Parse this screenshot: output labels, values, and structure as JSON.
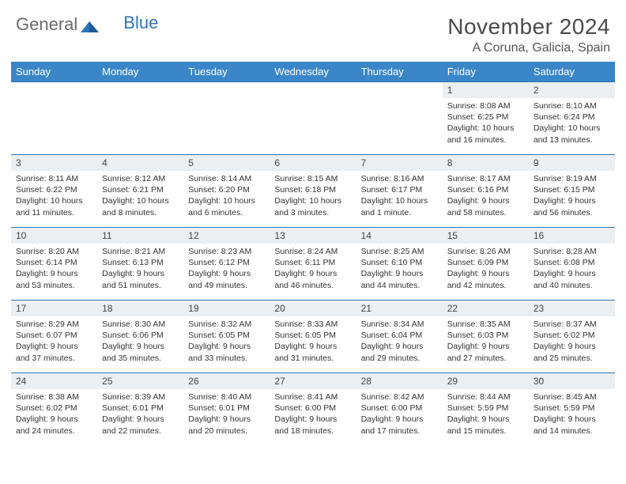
{
  "brand": {
    "part1": "General",
    "part2": "Blue"
  },
  "title": "November 2024",
  "location": "A Coruna, Galicia, Spain",
  "colors": {
    "header_bg": "#3b86c8",
    "daynum_bg": "#eceff1",
    "rule": "#2d74b8",
    "text": "#333333",
    "title": "#4a4a4a"
  },
  "day_names": [
    "Sunday",
    "Monday",
    "Tuesday",
    "Wednesday",
    "Thursday",
    "Friday",
    "Saturday"
  ],
  "weeks": [
    [
      {
        "n": "",
        "sr": "",
        "ss": "",
        "d1": "",
        "d2": ""
      },
      {
        "n": "",
        "sr": "",
        "ss": "",
        "d1": "",
        "d2": ""
      },
      {
        "n": "",
        "sr": "",
        "ss": "",
        "d1": "",
        "d2": ""
      },
      {
        "n": "",
        "sr": "",
        "ss": "",
        "d1": "",
        "d2": ""
      },
      {
        "n": "",
        "sr": "",
        "ss": "",
        "d1": "",
        "d2": ""
      },
      {
        "n": "1",
        "sr": "Sunrise: 8:08 AM",
        "ss": "Sunset: 6:25 PM",
        "d1": "Daylight: 10 hours",
        "d2": "and 16 minutes."
      },
      {
        "n": "2",
        "sr": "Sunrise: 8:10 AM",
        "ss": "Sunset: 6:24 PM",
        "d1": "Daylight: 10 hours",
        "d2": "and 13 minutes."
      }
    ],
    [
      {
        "n": "3",
        "sr": "Sunrise: 8:11 AM",
        "ss": "Sunset: 6:22 PM",
        "d1": "Daylight: 10 hours",
        "d2": "and 11 minutes."
      },
      {
        "n": "4",
        "sr": "Sunrise: 8:12 AM",
        "ss": "Sunset: 6:21 PM",
        "d1": "Daylight: 10 hours",
        "d2": "and 8 minutes."
      },
      {
        "n": "5",
        "sr": "Sunrise: 8:14 AM",
        "ss": "Sunset: 6:20 PM",
        "d1": "Daylight: 10 hours",
        "d2": "and 6 minutes."
      },
      {
        "n": "6",
        "sr": "Sunrise: 8:15 AM",
        "ss": "Sunset: 6:18 PM",
        "d1": "Daylight: 10 hours",
        "d2": "and 3 minutes."
      },
      {
        "n": "7",
        "sr": "Sunrise: 8:16 AM",
        "ss": "Sunset: 6:17 PM",
        "d1": "Daylight: 10 hours",
        "d2": "and 1 minute."
      },
      {
        "n": "8",
        "sr": "Sunrise: 8:17 AM",
        "ss": "Sunset: 6:16 PM",
        "d1": "Daylight: 9 hours",
        "d2": "and 58 minutes."
      },
      {
        "n": "9",
        "sr": "Sunrise: 8:19 AM",
        "ss": "Sunset: 6:15 PM",
        "d1": "Daylight: 9 hours",
        "d2": "and 56 minutes."
      }
    ],
    [
      {
        "n": "10",
        "sr": "Sunrise: 8:20 AM",
        "ss": "Sunset: 6:14 PM",
        "d1": "Daylight: 9 hours",
        "d2": "and 53 minutes."
      },
      {
        "n": "11",
        "sr": "Sunrise: 8:21 AM",
        "ss": "Sunset: 6:13 PM",
        "d1": "Daylight: 9 hours",
        "d2": "and 51 minutes."
      },
      {
        "n": "12",
        "sr": "Sunrise: 8:23 AM",
        "ss": "Sunset: 6:12 PM",
        "d1": "Daylight: 9 hours",
        "d2": "and 49 minutes."
      },
      {
        "n": "13",
        "sr": "Sunrise: 8:24 AM",
        "ss": "Sunset: 6:11 PM",
        "d1": "Daylight: 9 hours",
        "d2": "and 46 minutes."
      },
      {
        "n": "14",
        "sr": "Sunrise: 8:25 AM",
        "ss": "Sunset: 6:10 PM",
        "d1": "Daylight: 9 hours",
        "d2": "and 44 minutes."
      },
      {
        "n": "15",
        "sr": "Sunrise: 8:26 AM",
        "ss": "Sunset: 6:09 PM",
        "d1": "Daylight: 9 hours",
        "d2": "and 42 minutes."
      },
      {
        "n": "16",
        "sr": "Sunrise: 8:28 AM",
        "ss": "Sunset: 6:08 PM",
        "d1": "Daylight: 9 hours",
        "d2": "and 40 minutes."
      }
    ],
    [
      {
        "n": "17",
        "sr": "Sunrise: 8:29 AM",
        "ss": "Sunset: 6:07 PM",
        "d1": "Daylight: 9 hours",
        "d2": "and 37 minutes."
      },
      {
        "n": "18",
        "sr": "Sunrise: 8:30 AM",
        "ss": "Sunset: 6:06 PM",
        "d1": "Daylight: 9 hours",
        "d2": "and 35 minutes."
      },
      {
        "n": "19",
        "sr": "Sunrise: 8:32 AM",
        "ss": "Sunset: 6:05 PM",
        "d1": "Daylight: 9 hours",
        "d2": "and 33 minutes."
      },
      {
        "n": "20",
        "sr": "Sunrise: 8:33 AM",
        "ss": "Sunset: 6:05 PM",
        "d1": "Daylight: 9 hours",
        "d2": "and 31 minutes."
      },
      {
        "n": "21",
        "sr": "Sunrise: 8:34 AM",
        "ss": "Sunset: 6:04 PM",
        "d1": "Daylight: 9 hours",
        "d2": "and 29 minutes."
      },
      {
        "n": "22",
        "sr": "Sunrise: 8:35 AM",
        "ss": "Sunset: 6:03 PM",
        "d1": "Daylight: 9 hours",
        "d2": "and 27 minutes."
      },
      {
        "n": "23",
        "sr": "Sunrise: 8:37 AM",
        "ss": "Sunset: 6:02 PM",
        "d1": "Daylight: 9 hours",
        "d2": "and 25 minutes."
      }
    ],
    [
      {
        "n": "24",
        "sr": "Sunrise: 8:38 AM",
        "ss": "Sunset: 6:02 PM",
        "d1": "Daylight: 9 hours",
        "d2": "and 24 minutes."
      },
      {
        "n": "25",
        "sr": "Sunrise: 8:39 AM",
        "ss": "Sunset: 6:01 PM",
        "d1": "Daylight: 9 hours",
        "d2": "and 22 minutes."
      },
      {
        "n": "26",
        "sr": "Sunrise: 8:40 AM",
        "ss": "Sunset: 6:01 PM",
        "d1": "Daylight: 9 hours",
        "d2": "and 20 minutes."
      },
      {
        "n": "27",
        "sr": "Sunrise: 8:41 AM",
        "ss": "Sunset: 6:00 PM",
        "d1": "Daylight: 9 hours",
        "d2": "and 18 minutes."
      },
      {
        "n": "28",
        "sr": "Sunrise: 8:42 AM",
        "ss": "Sunset: 6:00 PM",
        "d1": "Daylight: 9 hours",
        "d2": "and 17 minutes."
      },
      {
        "n": "29",
        "sr": "Sunrise: 8:44 AM",
        "ss": "Sunset: 5:59 PM",
        "d1": "Daylight: 9 hours",
        "d2": "and 15 minutes."
      },
      {
        "n": "30",
        "sr": "Sunrise: 8:45 AM",
        "ss": "Sunset: 5:59 PM",
        "d1": "Daylight: 9 hours",
        "d2": "and 14 minutes."
      }
    ]
  ]
}
